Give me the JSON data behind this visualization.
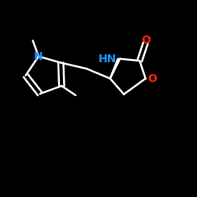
{
  "background": "#000000",
  "bond_color": "#ffffff",
  "N_color": "#1e90ff",
  "O_color": "#ff2200",
  "line_width": 1.8,
  "font_size_atom": 10,
  "figure_size": [
    2.5,
    2.5
  ],
  "dpi": 100,
  "xlim": [
    0,
    10
  ],
  "ylim": [
    0,
    10
  ]
}
